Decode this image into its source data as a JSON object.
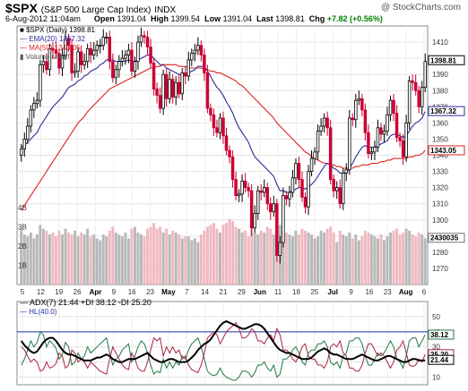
{
  "header": {
    "symbol": "$SPX",
    "name": "(S&P 500 Large Cap Index)",
    "exchange": "INDX",
    "brand": "@ StockCharts.com",
    "date": "6-Aug-2012 11:04am",
    "open_label": "Open",
    "open": "1391.04",
    "high_label": "High",
    "high": "1399.54",
    "low_label": "Low",
    "low": "1391.04",
    "last_label": "Last",
    "last": "1398.81",
    "chg_label": "Chg",
    "chg": "+7.82 (+0.56%)"
  },
  "legend": {
    "price": "$SPX (Daily) 1398.81",
    "ema": "EMA(20) 1367.32",
    "ma": "MA(50) 1343.05",
    "volume": "Volume undef"
  },
  "colors": {
    "up": "#000000",
    "down": "#cc0033",
    "ema": "#2b2b99",
    "ma": "#dd2222",
    "vol_up": "#b8b8b8",
    "vol_down": "#f0b8c0",
    "adx": "#000000",
    "pdi": "#227744",
    "mdi": "#aa2244",
    "hl": "#2233aa"
  },
  "chart_data": [
    {
      "type": "candlestick",
      "ylim": [
        1260,
        1420
      ],
      "yticks": [
        1270,
        1280,
        1290,
        1300,
        1310,
        1320,
        1330,
        1340,
        1350,
        1360,
        1370,
        1380,
        1390,
        1400,
        1410
      ],
      "right_labels": {
        "last": "1398.81",
        "ema": "1367.32",
        "ma": "1343.05",
        "vol": "2430035"
      },
      "volume_ticks": [
        "4B",
        "3B",
        "2B",
        "1B"
      ],
      "x_ticks": [
        "5",
        "12",
        "19",
        "26",
        "Apr",
        "9",
        "16",
        "23",
        "May",
        "7",
        "14",
        "21",
        "29",
        "Jun",
        "11",
        "18",
        "25",
        "Jul",
        "9",
        "16",
        "23",
        "Aug",
        "6"
      ],
      "close": [
        1344,
        1350,
        1358,
        1368,
        1372,
        1374,
        1396,
        1398,
        1393,
        1406,
        1405,
        1403,
        1394,
        1402,
        1412,
        1408,
        1391,
        1392,
        1404,
        1396,
        1398,
        1406,
        1402,
        1405,
        1408,
        1408,
        1413,
        1413,
        1398,
        1388,
        1393,
        1398,
        1400,
        1402,
        1405,
        1392,
        1398,
        1410,
        1414,
        1413,
        1407,
        1397,
        1381,
        1377,
        1369,
        1390,
        1375,
        1387,
        1376,
        1385,
        1378,
        1391,
        1389,
        1399,
        1403,
        1405,
        1408,
        1402,
        1391,
        1369,
        1365,
        1357,
        1354,
        1363,
        1352,
        1343,
        1339,
        1325,
        1315,
        1316,
        1324,
        1320,
        1318,
        1295,
        1304,
        1318,
        1317,
        1320,
        1310,
        1305,
        1310,
        1278,
        1286,
        1315,
        1313,
        1317,
        1326,
        1335,
        1325,
        1314,
        1308,
        1330,
        1338,
        1342,
        1355,
        1358,
        1363,
        1357,
        1325,
        1318,
        1320,
        1310,
        1329,
        1331,
        1363,
        1362,
        1374,
        1375,
        1368,
        1354,
        1341,
        1342,
        1345,
        1357,
        1353,
        1355,
        1365,
        1374,
        1366,
        1351,
        1349,
        1339,
        1360,
        1386,
        1385,
        1380,
        1370,
        1382,
        1398
      ],
      "ema20": [
        1345,
        1346,
        1348,
        1350,
        1352,
        1354,
        1358,
        1361,
        1364,
        1367,
        1370,
        1372,
        1374,
        1376,
        1379,
        1382,
        1383,
        1384,
        1386,
        1387,
        1389,
        1390,
        1392,
        1393,
        1394,
        1396,
        1397,
        1399,
        1399,
        1399,
        1398,
        1398,
        1398,
        1398,
        1399,
        1398,
        1398,
        1399,
        1400,
        1401,
        1402,
        1402,
        1400,
        1398,
        1396,
        1396,
        1394,
        1393,
        1392,
        1391,
        1390,
        1390,
        1390,
        1391,
        1392,
        1393,
        1395,
        1395,
        1395,
        1392,
        1389,
        1385,
        1382,
        1380,
        1377,
        1373,
        1370,
        1366,
        1361,
        1357,
        1354,
        1351,
        1348,
        1343,
        1339,
        1337,
        1335,
        1333,
        1331,
        1329,
        1327,
        1322,
        1318,
        1318,
        1317,
        1317,
        1318,
        1319,
        1320,
        1320,
        1319,
        1320,
        1322,
        1324,
        1327,
        1330,
        1333,
        1335,
        1334,
        1332,
        1331,
        1329,
        1329,
        1329,
        1332,
        1335,
        1339,
        1342,
        1345,
        1346,
        1345,
        1345,
        1345,
        1346,
        1347,
        1348,
        1349,
        1352,
        1353,
        1353,
        1352,
        1351,
        1352,
        1355,
        1358,
        1360,
        1361,
        1363,
        1367
      ],
      "ma50": [
        1306,
        1309,
        1312,
        1315,
        1318,
        1321,
        1324,
        1327,
        1330,
        1333,
        1336,
        1339,
        1342,
        1345,
        1348,
        1351,
        1354,
        1357,
        1360,
        1362,
        1364,
        1367,
        1369,
        1371,
        1373,
        1375,
        1377,
        1379,
        1381,
        1382,
        1383,
        1384,
        1385,
        1386,
        1387,
        1388,
        1389,
        1390,
        1391,
        1392,
        1393,
        1394,
        1394,
        1395,
        1395,
        1396,
        1396,
        1396,
        1396,
        1396,
        1395,
        1395,
        1395,
        1394,
        1394,
        1394,
        1394,
        1394,
        1393,
        1393,
        1392,
        1392,
        1391,
        1391,
        1390,
        1389,
        1388,
        1387,
        1386,
        1384,
        1383,
        1381,
        1379,
        1377,
        1375,
        1373,
        1371,
        1369,
        1367,
        1365,
        1363,
        1360,
        1358,
        1356,
        1354,
        1352,
        1350,
        1348,
        1346,
        1344,
        1342,
        1341,
        1339,
        1338,
        1337,
        1336,
        1335,
        1335,
        1334,
        1334,
        1333,
        1333,
        1332,
        1332,
        1332,
        1332,
        1333,
        1333,
        1334,
        1334,
        1334,
        1335,
        1335,
        1335,
        1336,
        1336,
        1337,
        1337,
        1338,
        1338,
        1338,
        1338,
        1338,
        1339,
        1339,
        1340,
        1340,
        1341,
        1343
      ],
      "volume_b": [
        2.9,
        2.6,
        2.5,
        2.7,
        2.4,
        2.6,
        3.1,
        2.9,
        2.8,
        2.6,
        2.7,
        2.5,
        2.8,
        2.6,
        2.9,
        2.7,
        2.6,
        2.8,
        2.5,
        2.7,
        2.6,
        2.9,
        2.5,
        2.6,
        2.4,
        2.3,
        2.6,
        2.5,
        2.8,
        3.0,
        2.7,
        2.6,
        2.5,
        2.7,
        2.4,
        2.9,
        3.0,
        2.7,
        2.6,
        2.5,
        2.9,
        3.0,
        3.2,
        2.9,
        3.0,
        2.7,
        2.9,
        2.6,
        2.8,
        2.7,
        2.6,
        2.4,
        2.5,
        2.5,
        2.3,
        2.4,
        2.2,
        2.6,
        2.8,
        3.0,
        3.1,
        3.2,
        2.9,
        2.7,
        3.1,
        3.2,
        3.4,
        3.3,
        3.0,
        2.9,
        2.7,
        2.8,
        2.5,
        2.9,
        2.7,
        2.6,
        2.8,
        2.7,
        3.0,
        2.9,
        2.6,
        3.6,
        3.1,
        2.9,
        2.7,
        2.6,
        2.5,
        2.8,
        2.6,
        2.9,
        2.8,
        2.7,
        2.6,
        2.4,
        2.5,
        2.8,
        2.7,
        2.9,
        3.0,
        2.7,
        2.2,
        2.8,
        2.6,
        2.5,
        2.7,
        2.4,
        2.6,
        2.3,
        2.5,
        2.8,
        2.7,
        2.6,
        2.5,
        2.4,
        2.6,
        2.3,
        2.5,
        2.7,
        2.8,
        2.9,
        2.6,
        2.7,
        2.9,
        2.8,
        2.6,
        2.5,
        2.7,
        2.6,
        2.4
      ]
    },
    {
      "type": "line",
      "title": "ADX(7) 21.44 +DI 38.12 -DI 25.20",
      "hl_label": "HL(40.0)",
      "ylim": [
        5,
        60
      ],
      "yticks": [
        10,
        20,
        30,
        40,
        50
      ],
      "right_labels": {
        "pdi": "38.12",
        "mdi": "25.20",
        "adx": "21.44"
      },
      "series": [
        {
          "name": "ADX(7)",
          "values": [
            34,
            31,
            29,
            27,
            26,
            27,
            30,
            33,
            35,
            36,
            36,
            34,
            31,
            28,
            26,
            25,
            25,
            24,
            23,
            22,
            21,
            21,
            21,
            22,
            23,
            23,
            24,
            25,
            24,
            22,
            21,
            20,
            20,
            21,
            22,
            22,
            22,
            23,
            24,
            25,
            26,
            24,
            22,
            21,
            20,
            20,
            21,
            22,
            22,
            21,
            20,
            20,
            20,
            21,
            23,
            25,
            28,
            30,
            32,
            33,
            35,
            38,
            41,
            44,
            46,
            47,
            46,
            45,
            44,
            43,
            42,
            42,
            43,
            44,
            45,
            45,
            44,
            42,
            39,
            36,
            33,
            30,
            28,
            27,
            26,
            26,
            25,
            24,
            23,
            22,
            22,
            22,
            23,
            25,
            27,
            28,
            29,
            28,
            26,
            25,
            25,
            24,
            23,
            22,
            22,
            22,
            23,
            24,
            25,
            24,
            23,
            22,
            21,
            21,
            22,
            23,
            24,
            24,
            23,
            22,
            21,
            20,
            20,
            21,
            22,
            22,
            21,
            21,
            21
          ]
        },
        {
          "name": "+DI",
          "values": [
            18,
            22,
            28,
            34,
            30,
            33,
            40,
            38,
            30,
            34,
            32,
            29,
            22,
            25,
            33,
            30,
            18,
            20,
            26,
            22,
            24,
            30,
            26,
            28,
            30,
            32,
            34,
            36,
            26,
            18,
            22,
            24,
            28,
            30,
            32,
            20,
            24,
            30,
            34,
            32,
            26,
            18,
            12,
            14,
            13,
            22,
            16,
            20,
            16,
            20,
            18,
            24,
            22,
            28,
            32,
            34,
            36,
            30,
            22,
            14,
            12,
            11,
            12,
            16,
            12,
            10,
            9,
            8,
            8,
            10,
            14,
            14,
            13,
            10,
            13,
            18,
            18,
            20,
            16,
            14,
            18,
            10,
            12,
            22,
            22,
            24,
            28,
            30,
            26,
            20,
            18,
            26,
            28,
            28,
            32,
            32,
            34,
            30,
            20,
            18,
            20,
            16,
            24,
            26,
            34,
            34,
            36,
            36,
            32,
            24,
            18,
            18,
            22,
            26,
            24,
            26,
            30,
            34,
            30,
            22,
            20,
            16,
            24,
            34,
            36,
            36,
            30,
            34,
            38
          ]
        },
        {
          "name": "-DI",
          "values": [
            30,
            28,
            24,
            20,
            22,
            20,
            14,
            15,
            20,
            16,
            17,
            19,
            26,
            24,
            16,
            18,
            28,
            26,
            20,
            22,
            20,
            16,
            20,
            18,
            16,
            14,
            13,
            12,
            22,
            30,
            26,
            22,
            18,
            16,
            15,
            26,
            22,
            16,
            14,
            14,
            20,
            28,
            36,
            34,
            36,
            24,
            30,
            26,
            30,
            26,
            28,
            22,
            24,
            18,
            15,
            14,
            13,
            18,
            26,
            36,
            38,
            40,
            38,
            32,
            36,
            40,
            42,
            44,
            46,
            42,
            36,
            36,
            38,
            42,
            40,
            34,
            34,
            32,
            36,
            38,
            34,
            42,
            38,
            28,
            28,
            26,
            22,
            20,
            24,
            30,
            32,
            24,
            22,
            22,
            18,
            18,
            16,
            20,
            30,
            32,
            30,
            34,
            26,
            24,
            16,
            16,
            14,
            14,
            18,
            26,
            32,
            32,
            28,
            24,
            26,
            24,
            20,
            16,
            20,
            28,
            30,
            34,
            26,
            18,
            17,
            18,
            22,
            20,
            25
          ]
        },
        {
          "name": "HL(40.0)",
          "values": [
            40
          ]
        }
      ]
    }
  ]
}
